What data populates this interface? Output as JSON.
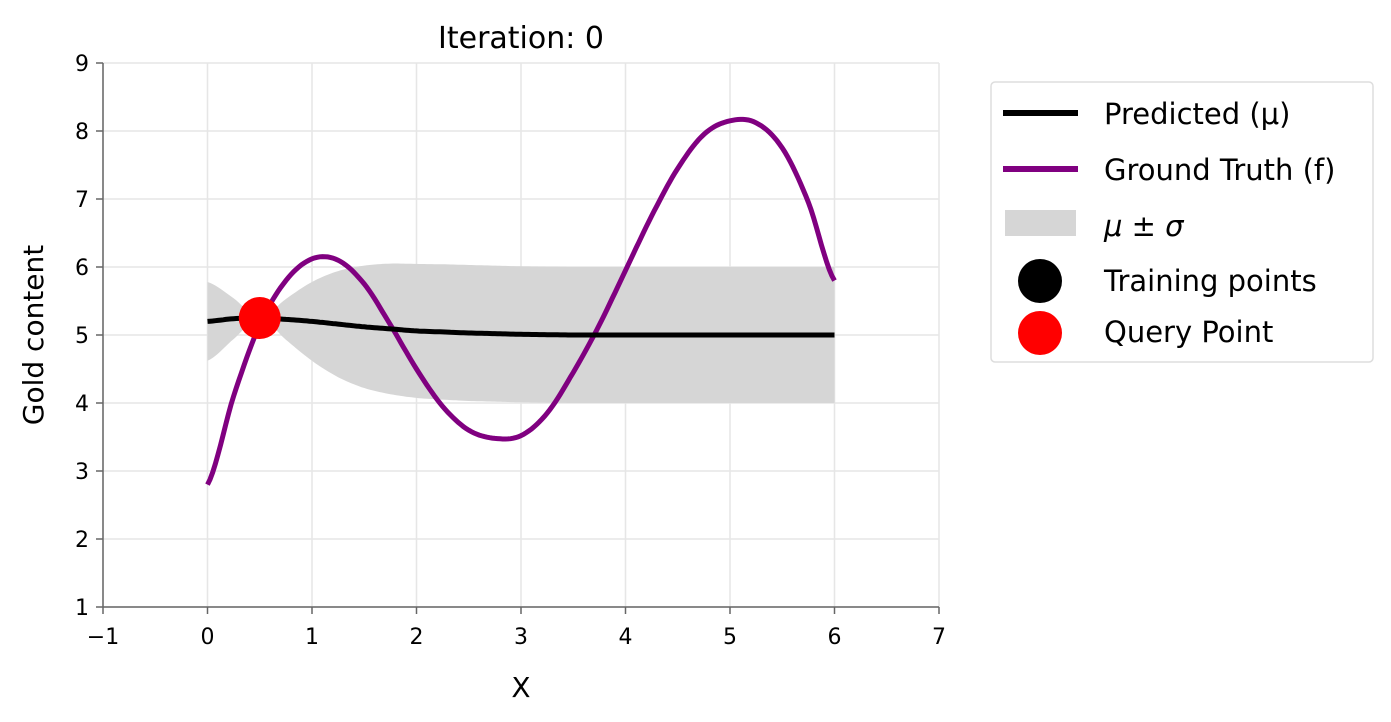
{
  "chart_data": {
    "type": "line",
    "title": "Iteration: 0",
    "xlabel": "X",
    "ylabel": "Gold content",
    "xlim": [
      -1,
      7
    ],
    "ylim": [
      1,
      9
    ],
    "xticks": [
      "−1",
      "0",
      "1",
      "2",
      "3",
      "4",
      "5",
      "6",
      "7"
    ],
    "yticks": [
      "1",
      "2",
      "3",
      "4",
      "5",
      "6",
      "7",
      "8",
      "9"
    ],
    "grid": true,
    "legend_placement": "outside-right-top",
    "colors": {
      "predicted": "#000000",
      "ground_truth": "#800080",
      "band": "#d6d6d6",
      "training": "#000000",
      "query": "#ff0000"
    },
    "x": [
      0,
      0.25,
      0.5,
      0.75,
      1,
      1.25,
      1.5,
      1.75,
      2,
      2.25,
      2.5,
      2.75,
      3,
      3.25,
      3.5,
      3.75,
      4,
      4.25,
      4.5,
      4.75,
      5,
      5.25,
      5.5,
      5.75,
      6
    ],
    "series": [
      {
        "name": "Predicted (μ)",
        "values": [
          5.2,
          5.24,
          5.25,
          5.23,
          5.2,
          5.16,
          5.12,
          5.09,
          5.06,
          5.045,
          5.03,
          5.02,
          5.01,
          5.005,
          5.0,
          5.0,
          5.0,
          5.0,
          5.0,
          5.0,
          5.0,
          5.0,
          5.0,
          5.0,
          5.0
        ]
      },
      {
        "name": "Ground Truth (f)",
        "values": [
          2.8,
          4.1,
          5.15,
          5.8,
          6.12,
          6.1,
          5.75,
          5.15,
          4.5,
          3.95,
          3.6,
          3.48,
          3.52,
          3.85,
          4.45,
          5.15,
          5.95,
          6.75,
          7.45,
          7.95,
          8.15,
          8.12,
          7.75,
          6.95,
          5.8
        ]
      }
    ],
    "sigma": [
      0.58,
      0.3,
      0.0,
      0.3,
      0.58,
      0.78,
      0.9,
      0.96,
      0.985,
      0.995,
      1.0,
      1.0,
      1.0,
      1.0,
      1.0,
      1.0,
      1.0,
      1.0,
      1.0,
      1.0,
      1.0,
      1.0,
      1.0,
      1.0,
      1.0
    ],
    "band_name": "μ ± σ",
    "training_points": {
      "name": "Training points",
      "x": [
        0.5
      ],
      "y": [
        5.25
      ]
    },
    "query_point": {
      "name": "Query Point",
      "x": 0.5,
      "y": 5.25
    }
  }
}
